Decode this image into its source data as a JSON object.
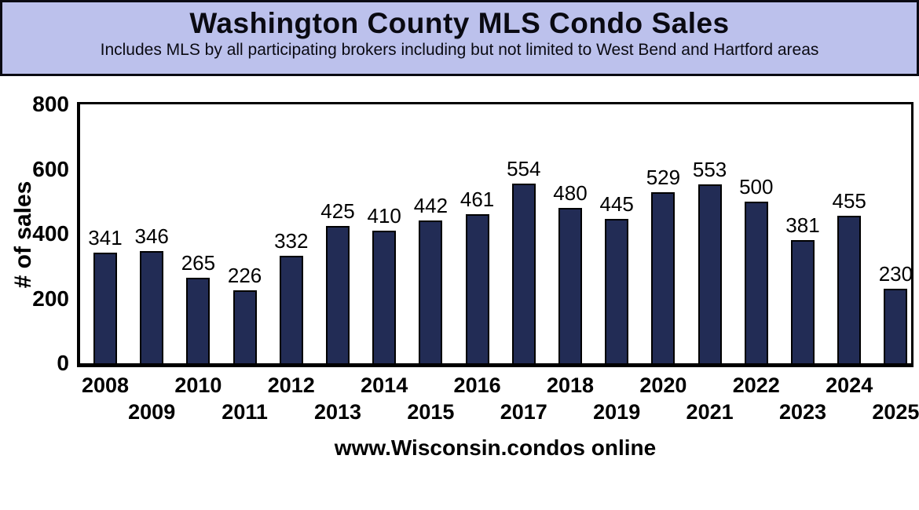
{
  "header": {
    "title": "Washington County MLS Condo Sales",
    "subtitle": "Includes MLS by all participating brokers including but not limited to West Bend and Hartford areas"
  },
  "footer": {
    "url": "www.Wisconsin.condos online"
  },
  "colors": {
    "header_background": "#bcc1ec",
    "bar_fill": "#222c55",
    "bar_outline": "#000000",
    "text": "#000000",
    "plot_background": "#ffffff"
  },
  "chart_data": {
    "type": "bar",
    "title": "Washington County MLS Condo Sales",
    "subtitle": "Includes MLS by all participating brokers including but not limited to West Bend and Hartford areas",
    "categories": [
      "2008",
      "2009",
      "2010",
      "2011",
      "2012",
      "2013",
      "2014",
      "2015",
      "2016",
      "2017",
      "2018",
      "2019",
      "2020",
      "2021",
      "2022",
      "2023",
      "2024",
      "2025"
    ],
    "values": [
      341,
      346,
      265,
      226,
      332,
      425,
      410,
      442,
      461,
      554,
      480,
      445,
      529,
      553,
      500,
      381,
      455,
      230
    ],
    "xlabel": "",
    "ylabel": "# of sales",
    "ylim": [
      0,
      800
    ],
    "yticks": [
      0,
      200,
      400,
      600,
      800
    ],
    "grid": false,
    "legend": null,
    "bar_labels_shown": true,
    "x_labels_staggered": true
  }
}
